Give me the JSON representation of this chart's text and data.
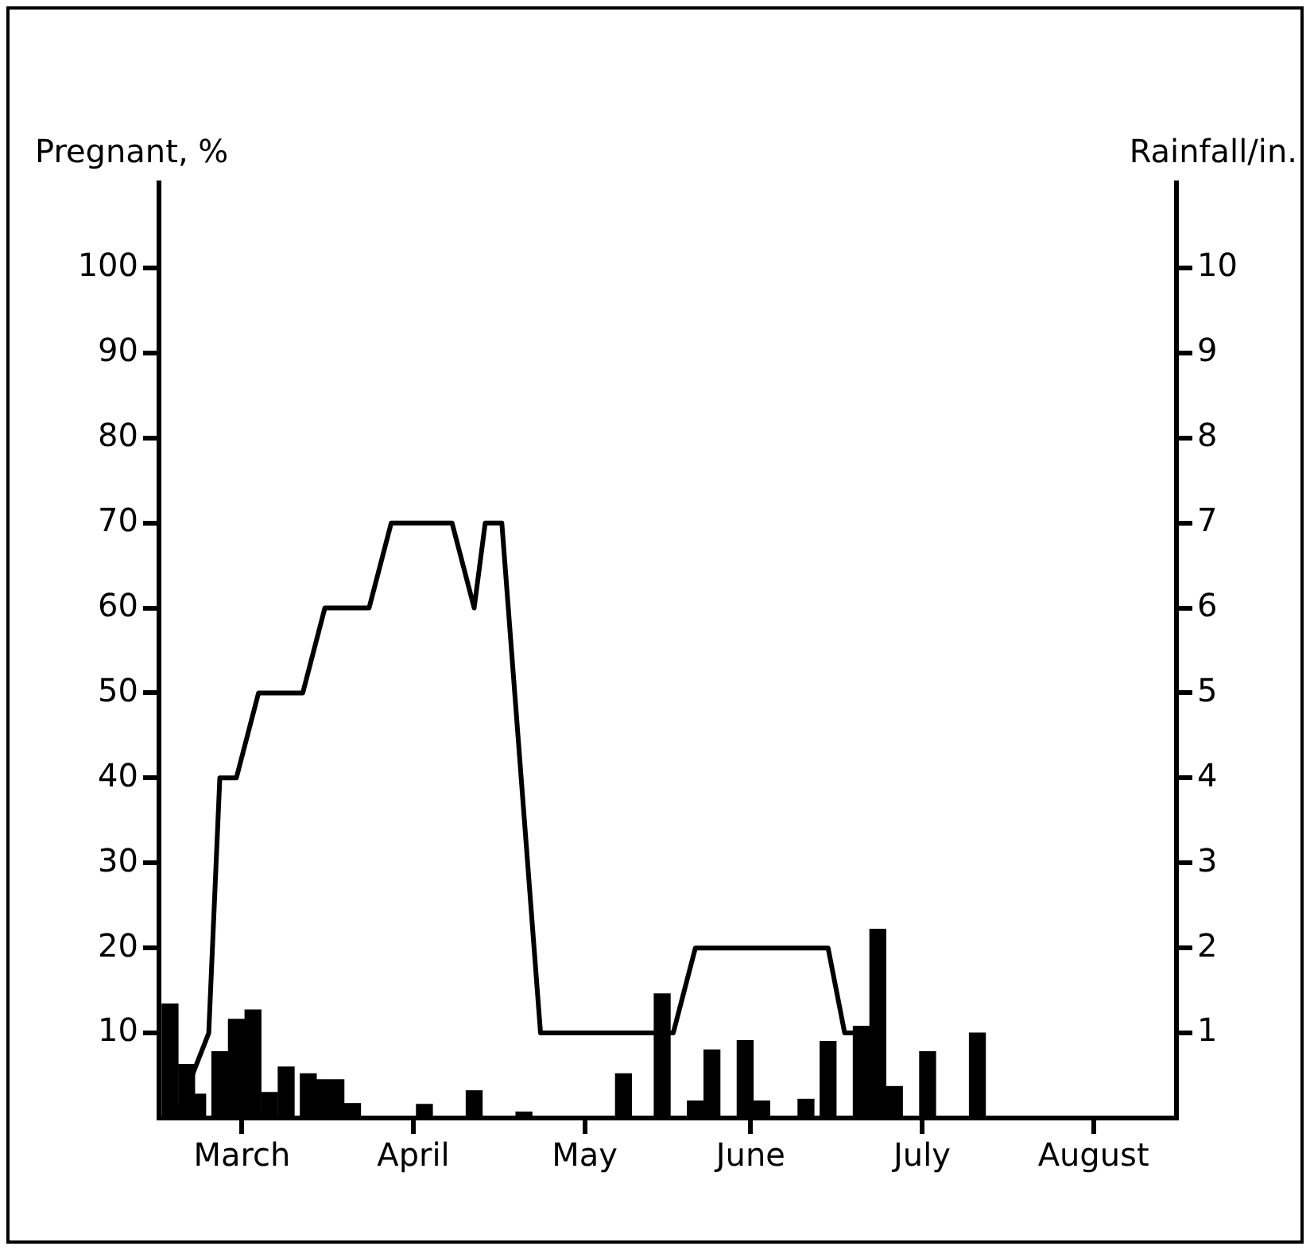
{
  "chart_data": {
    "type": "line",
    "ylabel": "Pregnant, %",
    "y2label": "Rainfall/in.",
    "xlim": [
      "--03-01",
      "--09-01"
    ],
    "xticks": [
      {
        "value": "--03-16",
        "label": "March"
      },
      {
        "value": "--04-16",
        "label": "April"
      },
      {
        "value": "--05-17",
        "label": "May"
      },
      {
        "value": "--06-16",
        "label": "June"
      },
      {
        "value": "--07-17",
        "label": "July"
      },
      {
        "value": "--08-17",
        "label": "August"
      }
    ],
    "ylim": [
      0,
      110
    ],
    "yticks": [
      10,
      20,
      30,
      40,
      50,
      60,
      70,
      80,
      90,
      100
    ],
    "y2lim": [
      0,
      11
    ],
    "y2ticks": [
      1,
      2,
      3,
      4,
      5,
      6,
      7,
      8,
      9,
      10
    ],
    "series": [
      {
        "type": "bar",
        "axis": "y2",
        "color": "#000000",
        "x": [
          "--03-03",
          "--03-06",
          "--03-08",
          "--03-12",
          "--03-15",
          "--03-18",
          "--03-21",
          "--03-24",
          "--03-28",
          "--03-30",
          "--04-02",
          "--04-05",
          "--04-18",
          "--04-27",
          "--05-06",
          "--05-24",
          "--05-31",
          "--06-06",
          "--06-09",
          "--06-15",
          "--06-18",
          "--06-26",
          "--06-30",
          "--07-06",
          "--07-09",
          "--07-12",
          "--07-18",
          "--07-27"
        ],
        "values": [
          1.34,
          0.63,
          0.28,
          0.78,
          1.16,
          1.27,
          0.3,
          0.6,
          0.52,
          0.45,
          0.45,
          0.17,
          0.16,
          0.32,
          0.07,
          0.52,
          1.46,
          0.2,
          0.8,
          0.91,
          0.2,
          0.22,
          0.9,
          1.08,
          2.22,
          0.37,
          0.78,
          1.0
        ]
      },
      {
        "color": "#000000",
        "x": [
          "--03-04",
          "--03-10",
          "--03-12",
          "--03-15",
          "--03-19",
          "--03-27",
          "--03-31",
          "--04-08",
          "--04-12",
          "--04-23",
          "--04-27",
          "--04-29",
          "--05-02",
          "--05-09",
          "--06-02",
          "--06-06",
          "--06-30",
          "--07-03",
          "--07-06",
          "--07-10"
        ],
        "values": [
          0,
          10,
          40,
          40,
          50,
          50,
          60,
          60,
          70,
          70,
          60,
          70,
          70,
          10,
          10,
          20,
          20,
          10,
          10,
          0
        ]
      }
    ]
  }
}
